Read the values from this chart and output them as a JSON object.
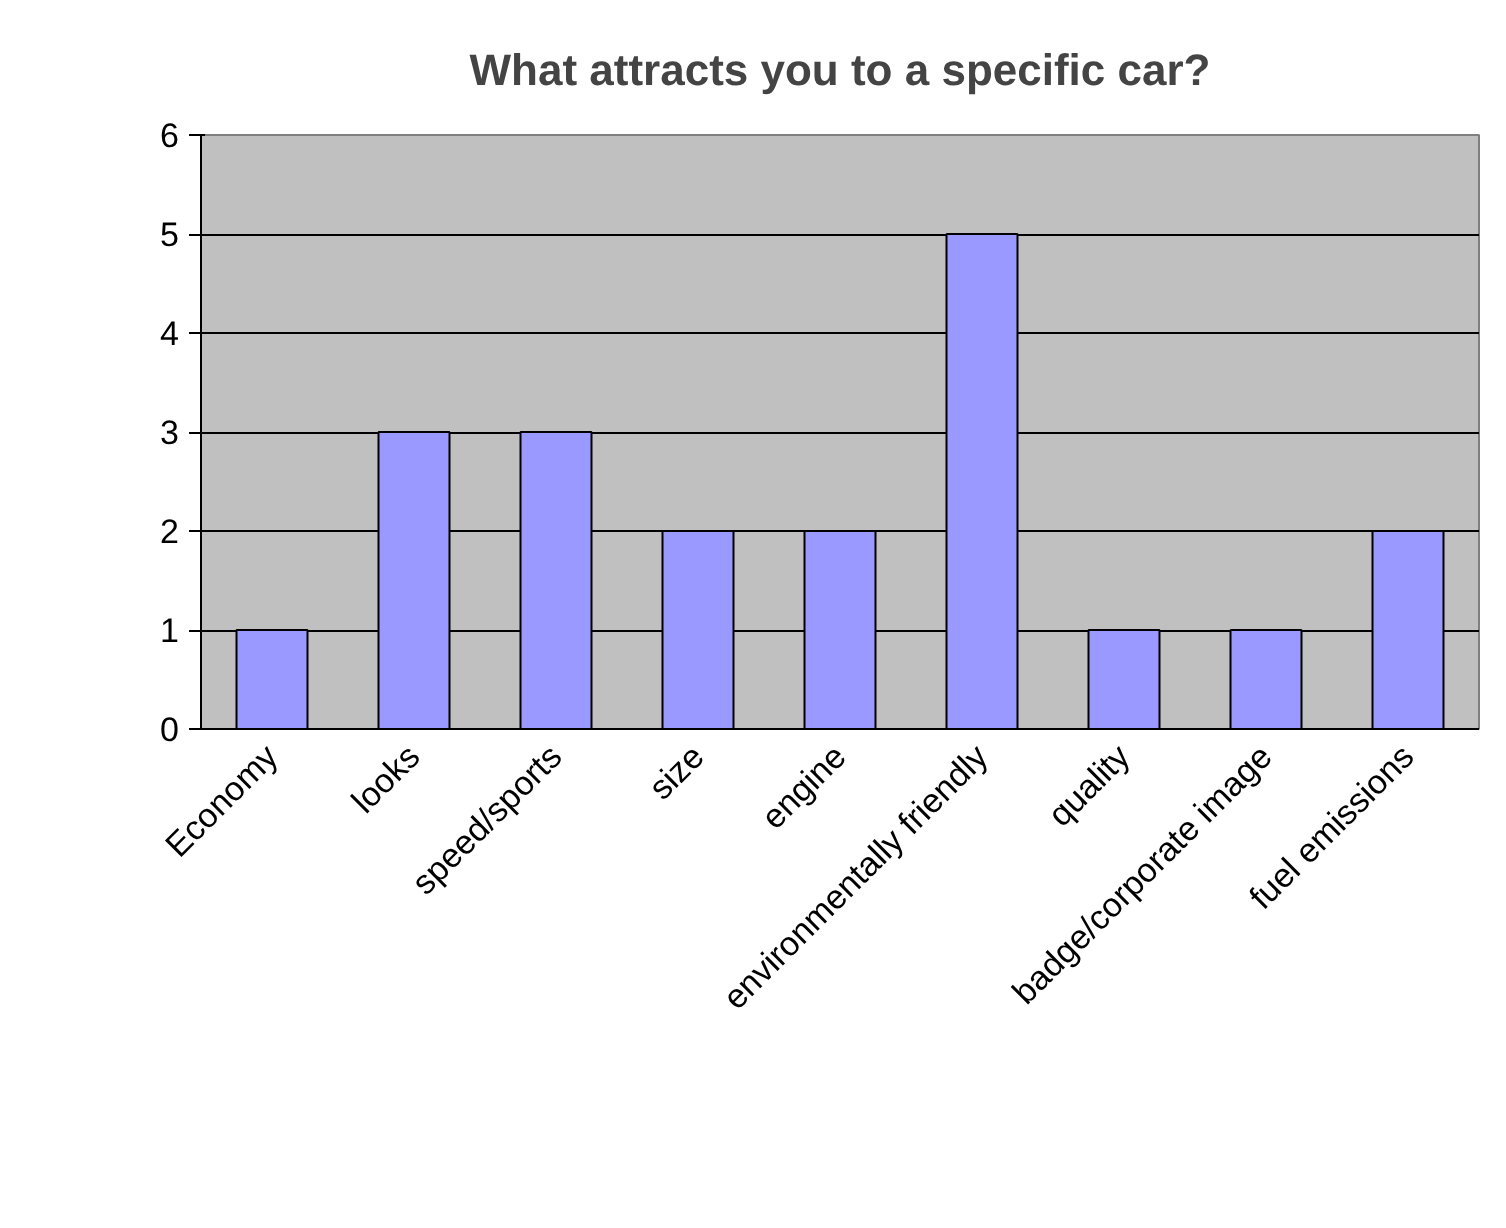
{
  "chart_data": {
    "type": "bar",
    "title": "What attracts you to a specific car?",
    "categories": [
      "Economy",
      "looks",
      "speed/sports",
      "size",
      "engine",
      "environmentally friendly",
      "quality",
      "badge/corporate image",
      "fuel emissions"
    ],
    "values": [
      1,
      3,
      3,
      2,
      2,
      5,
      1,
      1,
      2
    ],
    "color": "#9999ff",
    "ylim": [
      0,
      6
    ],
    "yticks": [
      0,
      1,
      2,
      3,
      4,
      5,
      6
    ],
    "grid": "y"
  }
}
